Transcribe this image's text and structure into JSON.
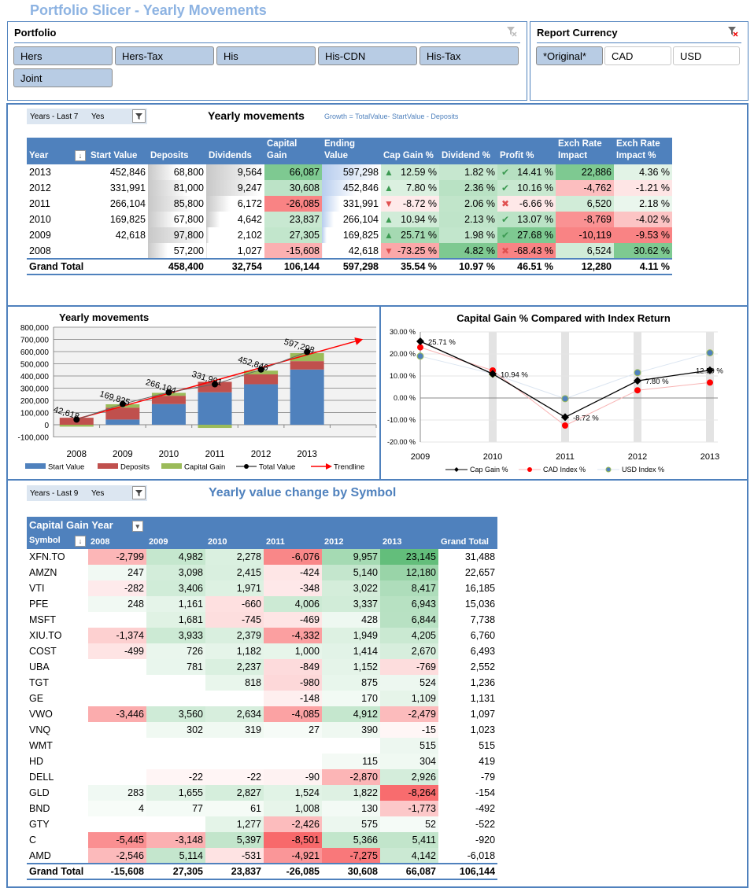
{
  "title": "Portfolio Slicer - Yearly Movements",
  "portfolio_slicer": {
    "label": "Portfolio",
    "items": [
      {
        "label": "Hers",
        "selected": true
      },
      {
        "label": "Hers-Tax",
        "selected": true
      },
      {
        "label": "His",
        "selected": true
      },
      {
        "label": "His-CDN",
        "selected": true
      },
      {
        "label": "His-Tax",
        "selected": true
      },
      {
        "label": "Joint",
        "selected": true
      }
    ]
  },
  "currency_slicer": {
    "label": "Report Currency",
    "items": [
      {
        "label": "*Original*",
        "selected": true
      },
      {
        "label": "CAD",
        "selected": false
      },
      {
        "label": "USD",
        "selected": false
      }
    ]
  },
  "colors": {
    "accent": "#4f81bd",
    "title": "#8db3e2",
    "slicer_selected": "#b8cce4",
    "good": "#63be7b",
    "bad": "#f8696b"
  },
  "movements": {
    "filter": {
      "field": "Years - Last 7",
      "value": "Yes"
    },
    "title": "Yearly movements",
    "note": "Growth = TotalValue- StartValue - Deposits",
    "columns": [
      "Year",
      "Start Value",
      "Deposits",
      "Dividends",
      "Capital Gain",
      "Ending Value",
      "Cap Gain %",
      "Dividend %",
      "Profit %",
      "Exch Rate Impact",
      "Exch Rate Impact %"
    ],
    "rows": [
      [
        "2013",
        "452,846",
        "68,800",
        "9,564",
        "66,087",
        "597,298",
        "12.59 %",
        "1.82 %",
        "14.41 %",
        "22,886",
        "4.36 %"
      ],
      [
        "2012",
        "331,991",
        "81,000",
        "9,247",
        "30,608",
        "452,846",
        "7.80 %",
        "2.36 %",
        "10.16 %",
        "-4,762",
        "-1.21 %"
      ],
      [
        "2011",
        "266,104",
        "85,800",
        "6,172",
        "-26,085",
        "331,991",
        "-8.72 %",
        "2.06 %",
        "-6.66 %",
        "6,520",
        "2.18 %"
      ],
      [
        "2010",
        "169,825",
        "67,800",
        "4,642",
        "23,837",
        "266,104",
        "10.94 %",
        "2.13 %",
        "13.07 %",
        "-8,769",
        "-4.02 %"
      ],
      [
        "2009",
        "42,618",
        "97,800",
        "2,102",
        "27,305",
        "169,825",
        "25.71 %",
        "1.98 %",
        "27.68 %",
        "-10,119",
        "-9.53 %"
      ],
      [
        "2008",
        "",
        "57,200",
        "1,027",
        "-15,608",
        "42,618",
        "-73.25 %",
        "4.82 %",
        "-68.43 %",
        "6,524",
        "30.62 %"
      ]
    ],
    "cap_gain_icons": [
      "triangle-up",
      "triangle-up",
      "triangle-down",
      "triangle-up",
      "triangle-up",
      "triangle-down"
    ],
    "profit_icons": [
      "check",
      "check",
      "cross",
      "check",
      "check",
      "cross"
    ],
    "total": [
      "Grand Total",
      "",
      "458,400",
      "32,754",
      "106,144",
      "597,298",
      "35.54 %",
      "10.97 %",
      "46.51 %",
      "12,280",
      "4.11 %"
    ]
  },
  "chart_data": [
    {
      "type": "bar",
      "stacked": true,
      "title": "Yearly movements",
      "categories": [
        "2008",
        "2009",
        "2010",
        "2011",
        "2012",
        "2013"
      ],
      "series": [
        {
          "name": "Start Value",
          "kind": "bar",
          "color": "#4f81bd",
          "values": [
            0,
            42618,
            169825,
            266104,
            331991,
            452846
          ]
        },
        {
          "name": "Deposits",
          "kind": "bar",
          "color": "#c0504d",
          "values": [
            57200,
            97800,
            67800,
            85800,
            81000,
            68800
          ]
        },
        {
          "name": "Capital Gain",
          "kind": "bar",
          "color": "#9bbb59",
          "values": [
            -15608,
            27305,
            23837,
            -26085,
            30608,
            66087
          ]
        },
        {
          "name": "Total Value",
          "kind": "line",
          "color": "#000000",
          "values": [
            42618,
            169825,
            266104,
            331991,
            452846,
            597298
          ],
          "data_labels": [
            "42,618",
            "169,825",
            "266,104",
            "331,991",
            "452,846",
            "597,298"
          ]
        },
        {
          "name": "Trendline",
          "kind": "trendline",
          "color": "#ff0000"
        }
      ],
      "ylim": [
        -100000,
        800000
      ],
      "y_tick_labels": [
        "-100,000",
        "0",
        "100,000",
        "200,000",
        "300,000",
        "400,000",
        "500,000",
        "600,000",
        "700,000",
        "800,000"
      ],
      "grid": true,
      "legend": "bottom"
    },
    {
      "type": "line",
      "title": "Capital Gain % Compared with Index Return",
      "categories": [
        "2009",
        "2010",
        "2011",
        "2012",
        "2013"
      ],
      "series": [
        {
          "name": "Cap Gain %",
          "color": "#000000",
          "values": [
            25.71,
            10.94,
            -8.72,
            7.8,
            12.59
          ],
          "data_labels": [
            "25.71 %",
            "10.94 %",
            "-8.72 %",
            "7.80 %",
            "12.59 %"
          ]
        },
        {
          "name": "CAD Index %",
          "color": "#ff0000",
          "values": [
            23.0,
            12.5,
            -12.5,
            3.5,
            7.0
          ]
        },
        {
          "name": "USD Index %",
          "color": "#4f81bd",
          "values": [
            19.0,
            11.0,
            -0.3,
            11.5,
            20.5
          ]
        }
      ],
      "ylim": [
        -20,
        30
      ],
      "y_tick_labels": [
        "-20.00 %",
        "-10.00 %",
        "0.00 %",
        "10.00 %",
        "20.00 %",
        "30.00 %"
      ],
      "grid": true,
      "legend": "bottom"
    }
  ],
  "symbols": {
    "filter": {
      "field": "Years - Last 9",
      "value": "Yes"
    },
    "title": "Yearly value change by Symbol",
    "col_header": "Capital Gain Year",
    "row_header": "Symbol",
    "columns": [
      "2008",
      "2009",
      "2010",
      "2011",
      "2012",
      "2013",
      "Grand Total"
    ],
    "rows": [
      {
        "symbol": "XFN.TO",
        "values": [
          "-2,799",
          "4,982",
          "2,278",
          "-6,076",
          "9,957",
          "23,145",
          "31,488"
        ]
      },
      {
        "symbol": "AMZN",
        "values": [
          "247",
          "3,098",
          "2,415",
          "-424",
          "5,140",
          "12,180",
          "22,657"
        ]
      },
      {
        "symbol": "VTI",
        "values": [
          "-282",
          "3,406",
          "1,971",
          "-348",
          "3,022",
          "8,417",
          "16,185"
        ]
      },
      {
        "symbol": "PFE",
        "values": [
          "248",
          "1,161",
          "-660",
          "4,006",
          "3,337",
          "6,943",
          "15,036"
        ]
      },
      {
        "symbol": "MSFT",
        "values": [
          "",
          "1,681",
          "-745",
          "-469",
          "428",
          "6,844",
          "7,738"
        ]
      },
      {
        "symbol": "XIU.TO",
        "values": [
          "-1,374",
          "3,933",
          "2,379",
          "-4,332",
          "1,949",
          "4,205",
          "6,760"
        ]
      },
      {
        "symbol": "COST",
        "values": [
          "-499",
          "726",
          "1,182",
          "1,000",
          "1,414",
          "2,670",
          "6,493"
        ]
      },
      {
        "symbol": "UBA",
        "values": [
          "",
          "781",
          "2,237",
          "-849",
          "1,152",
          "-769",
          "2,552"
        ]
      },
      {
        "symbol": "TGT",
        "values": [
          "",
          "",
          "818",
          "-980",
          "875",
          "524",
          "1,236"
        ]
      },
      {
        "symbol": "GE",
        "values": [
          "",
          "",
          "",
          "-148",
          "170",
          "1,109",
          "1,131"
        ]
      },
      {
        "symbol": "VWO",
        "values": [
          "-3,446",
          "3,560",
          "2,634",
          "-4,085",
          "4,912",
          "-2,479",
          "1,097"
        ]
      },
      {
        "symbol": "VNQ",
        "values": [
          "",
          "302",
          "319",
          "27",
          "390",
          "-15",
          "1,023"
        ]
      },
      {
        "symbol": "WMT",
        "values": [
          "",
          "",
          "",
          "",
          "",
          "515",
          "515"
        ]
      },
      {
        "symbol": "HD",
        "values": [
          "",
          "",
          "",
          "",
          "115",
          "304",
          "419"
        ]
      },
      {
        "symbol": "DELL",
        "values": [
          "",
          "-22",
          "-22",
          "-90",
          "-2,870",
          "2,926",
          "-79"
        ]
      },
      {
        "symbol": "GLD",
        "values": [
          "283",
          "1,655",
          "2,827",
          "1,524",
          "1,822",
          "-8,264",
          "-154"
        ]
      },
      {
        "symbol": "BND",
        "values": [
          "4",
          "77",
          "61",
          "1,008",
          "130",
          "-1,773",
          "-492"
        ]
      },
      {
        "symbol": "GTY",
        "values": [
          "",
          "",
          "1,277",
          "-2,426",
          "575",
          "52",
          "-522"
        ]
      },
      {
        "symbol": "C",
        "values": [
          "-5,445",
          "-3,148",
          "5,397",
          "-8,501",
          "5,366",
          "5,411",
          "-920"
        ]
      },
      {
        "symbol": "AMD",
        "values": [
          "-2,546",
          "5,114",
          "-531",
          "-4,921",
          "-7,275",
          "4,142",
          "-6,018"
        ]
      }
    ],
    "total": {
      "label": "Grand Total",
      "values": [
        "-15,608",
        "27,305",
        "23,837",
        "-26,085",
        "30,608",
        "66,087",
        "106,144"
      ]
    }
  }
}
